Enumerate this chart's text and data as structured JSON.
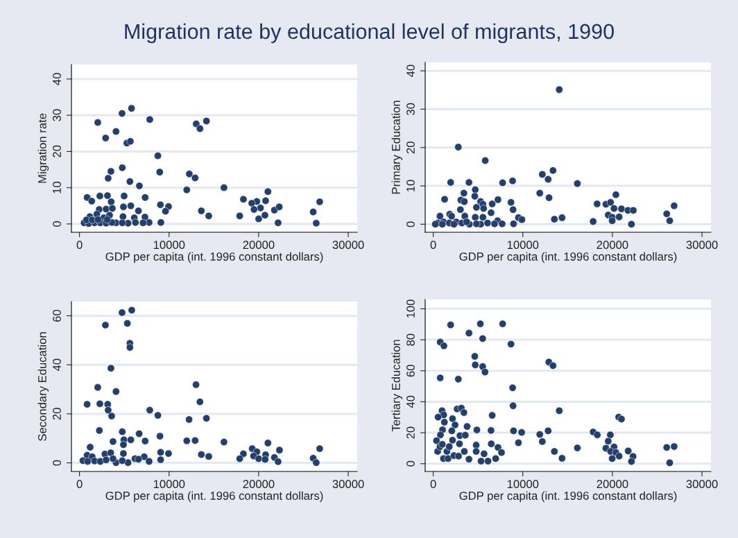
{
  "chart_data": [
    {
      "type": "scatter",
      "title": "Migration rate by educational level of migrants, 1990",
      "xlabel": "GDP per capita (int. 1996 constant dollars)",
      "ylabel": "Migration rate",
      "xlim": [
        -900,
        31000
      ],
      "xticks": [
        0,
        10000,
        20000,
        30000
      ],
      "ylim": [
        -2.3,
        44
      ],
      "yticks": [
        0,
        10,
        20,
        30,
        40
      ],
      "grid": "y",
      "marker": "circle",
      "legend": false,
      "series": [
        {
          "color": "#233f6e",
          "x": [
            5806,
            4748,
            2039,
            7845,
            4077,
            2916,
            5290,
            5677,
            13032,
            13445,
            14168,
            8748,
            8955,
            4774,
            3510,
            3200,
            5626,
            6684,
            12258,
            12903,
            11974,
            16129,
            21032,
            18297,
            20774,
            19793,
            19226,
            20206,
            19484,
            21755,
            22297,
            20000,
            20697,
            17884,
            13600,
            14426,
            22168,
            26090,
            26813,
            26426,
            9032,
            9935,
            9600,
            9084,
            852,
            1368,
            2271,
            3123,
            4981,
            7329,
            3535,
            4903,
            5729,
            6581,
            2194,
            2968,
            3665,
            6116,
            7303,
            7768,
            6245,
            5419,
            4852,
            4077,
            1161,
            1935,
            2710,
            3355,
            516,
            1032,
            1677,
            2322,
            2968,
            3613,
            4774,
            7097,
            774,
            1419,
            2064,
            3097
          ],
          "values": [
            31.9,
            30.5,
            28.0,
            28.8,
            25.5,
            23.7,
            22.3,
            22.8,
            27.6,
            26.3,
            28.4,
            18.8,
            14.3,
            15.5,
            14.5,
            12.6,
            11.7,
            10.5,
            13.8,
            12.7,
            9.4,
            10.0,
            8.9,
            6.8,
            6.4,
            6.2,
            5.7,
            4.4,
            4.0,
            3.8,
            4.7,
            1.4,
            2.4,
            2.2,
            3.6,
            2.2,
            0.3,
            3.3,
            6.1,
            0.2,
            5.3,
            4.8,
            3.5,
            0.4,
            7.3,
            6.3,
            7.7,
            7.8,
            7.7,
            7.3,
            6.1,
            4.7,
            5.0,
            3.6,
            4.0,
            4.1,
            4.3,
            1.7,
            1.9,
            0.4,
            0.4,
            0.2,
            2.0,
            0.3,
            2.0,
            2.7,
            1.7,
            2.4,
            0.3,
            0.1,
            0.3,
            0.3,
            0.2,
            0.4,
            0.3,
            0.3,
            1.1,
            1.1,
            1.2,
            1.2
          ]
        }
      ]
    },
    {
      "type": "scatter",
      "xlabel": "GDP per capita (int. 1996 constant dollars)",
      "ylabel": "Primary Education",
      "xlim": [
        -900,
        31000
      ],
      "xticks": [
        0,
        10000,
        20000,
        30000
      ],
      "ylim": [
        -2.1,
        42.2
      ],
      "yticks": [
        0,
        10,
        20,
        30,
        40
      ],
      "grid": "y",
      "marker": "circle",
      "legend": false,
      "series": [
        {
          "color": "#233f6e",
          "x": [
            14067,
            2798,
            5803,
            13368,
            12176,
            12824,
            16088,
            1943,
            3990,
            7746,
            8860,
            4689,
            3420,
            4637,
            1269,
            3083,
            3472,
            5285,
            5544,
            5622,
            4819,
            6580,
            7228,
            8679,
            8912,
            11891,
            12927,
            3031,
            6451,
            20389,
            18290,
            19275,
            19793,
            20181,
            21010,
            21736,
            22332,
            19534,
            19974,
            20751,
            19974,
            17850,
            22124,
            26062,
            26891,
            26399,
            13523,
            14378,
            9508,
            9896,
            8964,
            751,
            1839,
            2047,
            3523,
            4689,
            5544,
            7176,
            7694,
            6062,
            5285,
            4041,
            492,
            1140,
            1788,
            2565,
            3212,
            3731,
            4819,
            6839,
            1010,
            2306,
            233
          ],
          "values": [
            35.1,
            20.1,
            16.6,
            14.0,
            13.0,
            11.7,
            10.6,
            10.9,
            10.9,
            10.8,
            11.3,
            9.0,
            8.1,
            7.3,
            6.5,
            6.3,
            5.9,
            5.9,
            5.2,
            4.1,
            4.4,
            5.3,
            6.4,
            5.7,
            3.8,
            8.1,
            6.9,
            3.8,
            3.0,
            7.7,
            5.3,
            5.2,
            5.7,
            4.1,
            4.0,
            3.6,
            3.6,
            2.4,
            1.8,
            1.9,
            0.9,
            0.7,
            0.0,
            2.7,
            4.8,
            0.9,
            1.3,
            1.7,
            1.7,
            1.2,
            0.1,
            2.1,
            2.6,
            2.1,
            2.1,
            1.8,
            1.8,
            0.9,
            0.1,
            0.3,
            0.0,
            0.0,
            0.3,
            0.6,
            0.3,
            0.6,
            0.3,
            0.6,
            0.1,
            0.1,
            0.0,
            0.0,
            0.0
          ]
        }
      ]
    },
    {
      "type": "scatter",
      "xlabel": "GDP per capita (int. 1996 constant dollars)",
      "ylabel": "Secondary Education",
      "xlim": [
        -900,
        31000
      ],
      "xticks": [
        0,
        10000,
        20000,
        30000
      ],
      "ylim": [
        -3.5,
        65.8
      ],
      "yticks": [
        0,
        20,
        40,
        60
      ],
      "grid": "y",
      "marker": "circle",
      "legend": false,
      "series": [
        {
          "color": "#233f6e",
          "x": [
            5832,
            4748,
            2890,
            5342,
            5626,
            5626,
            3510,
            2039,
            4077,
            13006,
            13445,
            852,
            2271,
            3148,
            3200,
            3587,
            7845,
            8748,
            12232,
            14168,
            2219,
            4774,
            6658,
            8981,
            3742,
            4955,
            4903,
            5729,
            7329,
            11974,
            12903,
            16129,
            21032,
            19277,
            26813,
            22322,
            18297,
            17884,
            19794,
            19432,
            20774,
            20000,
            20723,
            21755,
            22168,
            26090,
            26426,
            13600,
            14426,
            9058,
            9935,
            9058,
            1187,
            852,
            1419,
            2839,
            3484,
            4903,
            6194,
            7226,
            7768,
            5419,
            4077,
            387,
            903,
            1677,
            2322,
            2968,
            3742,
            4774,
            6581
          ],
          "values": [
            62.3,
            61.3,
            56.2,
            56.9,
            48.8,
            47.1,
            38.6,
            30.8,
            29.1,
            31.9,
            24.9,
            23.9,
            24.1,
            23.9,
            21.5,
            19.1,
            21.5,
            19.4,
            17.7,
            18.2,
            13.2,
            12.7,
            11.9,
            10.9,
            8.7,
            9.4,
            7.4,
            9.4,
            8.9,
            9.0,
            9.1,
            8.5,
            8.1,
            5.8,
            5.8,
            5.2,
            3.7,
            1.7,
            4.5,
            2.8,
            3.3,
            1.7,
            1.4,
            2.2,
            0.5,
            1.9,
            0.1,
            3.4,
            2.6,
            4.3,
            3.8,
            1.3,
            6.4,
            3.1,
            2.5,
            3.6,
            4.1,
            3.8,
            1.7,
            2.5,
            0.6,
            0.1,
            0.1,
            0.9,
            0.6,
            0.8,
            0.6,
            1.2,
            1.7,
            0.9,
            1.5
          ]
        }
      ]
    },
    {
      "type": "scatter",
      "xlabel": "GDP per capita (int. 1996 constant dollars)",
      "ylabel": "Tertiary Education",
      "xlim": [
        -900,
        31000
      ],
      "xticks": [
        0,
        10000,
        20000,
        30000
      ],
      "ylim": [
        -5,
        106
      ],
      "yticks": [
        0,
        20,
        40,
        60,
        80,
        100
      ],
      "grid": "y",
      "marker": "circle",
      "legend": false,
      "series": [
        {
          "color": "#233f6e",
          "x": [
            1943,
            5259,
            7746,
            3990,
            5518,
            777,
            1192,
            8679,
            4637,
            4689,
            5518,
            5777,
            12902,
            13368,
            777,
            2798,
            8860,
            8912,
            14067,
            984,
            1166,
            544,
            2668,
            3135,
            3420,
            6580,
            2150,
            1244,
            2435,
            3782,
            2073,
            1036,
            803,
            4870,
            6451,
            2979,
            3575,
            8964,
            9870,
            11891,
            12824,
            12176,
            9508,
            20699,
            21010,
            17850,
            18316,
            19767,
            19534,
            19275,
            20181,
            19793,
            20389,
            20751,
            19974,
            21762,
            22306,
            22124,
            26062,
            26891,
            26399,
            16088,
            13523,
            14378,
            6477,
            7228,
            7617,
            6969,
            6114,
            5337,
            5674,
            4793,
            4793,
            3990,
            2927,
            2150,
            363,
            492,
            751,
            1140,
            1528,
            1658,
            2306,
            2824,
            3472,
            1010,
            1788
          ],
          "values": [
            89.6,
            90.3,
            90.3,
            84.3,
            80.8,
            78.5,
            76.1,
            77.2,
            69.3,
            63.8,
            62.7,
            59.2,
            65.6,
            63.3,
            55.4,
            54.6,
            49.0,
            37.4,
            34.2,
            34.2,
            31.5,
            30.1,
            35.3,
            35.9,
            33.0,
            31.2,
            29.1,
            26.8,
            25.0,
            24.0,
            21.2,
            21.9,
            18.6,
            21.8,
            21.5,
            18.1,
            18.4,
            21.2,
            20.2,
            18.9,
            21.2,
            14.3,
            13.5,
            30.1,
            28.8,
            20.5,
            18.6,
            18.6,
            14.5,
            10.0,
            10.8,
            7.9,
            7.2,
            4.9,
            3.3,
            8.2,
            4.7,
            1.4,
            10.5,
            11.1,
            0.6,
            10.2,
            7.9,
            3.5,
            12.8,
            10.5,
            7.2,
            3.3,
            1.7,
            1.7,
            6.4,
            12.0,
            7.9,
            2.9,
            12.8,
            15.2,
            14.9,
            7.9,
            11.0,
            3.3,
            7.9,
            3.3,
            5.2,
            4.9,
            7.9,
            12.5,
            11.0
          ]
        }
      ]
    }
  ]
}
